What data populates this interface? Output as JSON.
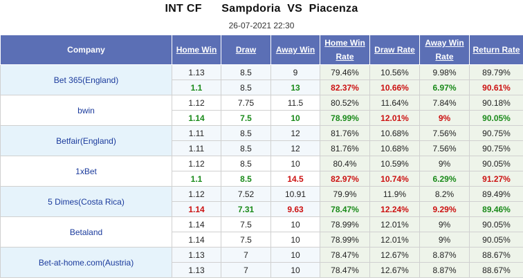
{
  "match": {
    "home": "INT CF",
    "teamA": "Sampdoria",
    "vs": "VS",
    "teamB": "Piacenza",
    "datetime": "26-07-2021 22:30"
  },
  "headers": {
    "company": "Company",
    "home_win": "Home Win",
    "draw": "Draw",
    "away_win": "Away Win",
    "home_win_rate": "Home Win Rate",
    "draw_rate": "Draw Rate",
    "away_win_rate": "Away Win Rate",
    "return_rate": "Return Rate"
  },
  "colors": {
    "header_bg": "#5b6fb5",
    "green": "#1a8a1a",
    "red": "#cc1111",
    "company_text": "#1a3a9c"
  },
  "companies": [
    {
      "name": "Bet 365(England)",
      "rows": [
        {
          "home": "1.13",
          "draw": "8.5",
          "away": "9",
          "hwr": "79.46%",
          "dr": "10.56%",
          "awr": "9.98%",
          "rr": "89.79%"
        },
        {
          "home": "1.1",
          "draw": "8.5",
          "away": "13",
          "hwr": "82.37%",
          "dr": "10.66%",
          "awr": "6.97%",
          "rr": "90.61%"
        }
      ]
    },
    {
      "name": "bwin",
      "rows": [
        {
          "home": "1.12",
          "draw": "7.75",
          "away": "11.5",
          "hwr": "80.52%",
          "dr": "11.64%",
          "awr": "7.84%",
          "rr": "90.18%"
        },
        {
          "home": "1.14",
          "draw": "7.5",
          "away": "10",
          "hwr": "78.99%",
          "dr": "12.01%",
          "awr": "9%",
          "rr": "90.05%"
        }
      ]
    },
    {
      "name": "Betfair(England)",
      "rows": [
        {
          "home": "1.11",
          "draw": "8.5",
          "away": "12",
          "hwr": "81.76%",
          "dr": "10.68%",
          "awr": "7.56%",
          "rr": "90.75%"
        },
        {
          "home": "1.11",
          "draw": "8.5",
          "away": "12",
          "hwr": "81.76%",
          "dr": "10.68%",
          "awr": "7.56%",
          "rr": "90.75%"
        }
      ]
    },
    {
      "name": "1xBet",
      "rows": [
        {
          "home": "1.12",
          "draw": "8.5",
          "away": "10",
          "hwr": "80.4%",
          "dr": "10.59%",
          "awr": "9%",
          "rr": "90.05%"
        },
        {
          "home": "1.1",
          "draw": "8.5",
          "away": "14.5",
          "hwr": "82.97%",
          "dr": "10.74%",
          "awr": "6.29%",
          "rr": "91.27%"
        }
      ]
    },
    {
      "name": "5 Dimes(Costa Rica)",
      "rows": [
        {
          "home": "1.12",
          "draw": "7.52",
          "away": "10.91",
          "hwr": "79.9%",
          "dr": "11.9%",
          "awr": "8.2%",
          "rr": "89.49%"
        },
        {
          "home": "1.14",
          "draw": "7.31",
          "away": "9.63",
          "hwr": "78.47%",
          "dr": "12.24%",
          "awr": "9.29%",
          "rr": "89.46%"
        }
      ]
    },
    {
      "name": "Betaland",
      "rows": [
        {
          "home": "1.14",
          "draw": "7.5",
          "away": "10",
          "hwr": "78.99%",
          "dr": "12.01%",
          "awr": "9%",
          "rr": "90.05%"
        },
        {
          "home": "1.14",
          "draw": "7.5",
          "away": "10",
          "hwr": "78.99%",
          "dr": "12.01%",
          "awr": "9%",
          "rr": "90.05%"
        }
      ]
    },
    {
      "name": "Bet-at-home.com(Austria)",
      "rows": [
        {
          "home": "1.13",
          "draw": "7",
          "away": "10",
          "hwr": "78.47%",
          "dr": "12.67%",
          "awr": "8.87%",
          "rr": "88.67%"
        },
        {
          "home": "1.13",
          "draw": "7",
          "away": "10",
          "hwr": "78.47%",
          "dr": "12.67%",
          "awr": "8.87%",
          "rr": "88.67%"
        }
      ]
    }
  ]
}
